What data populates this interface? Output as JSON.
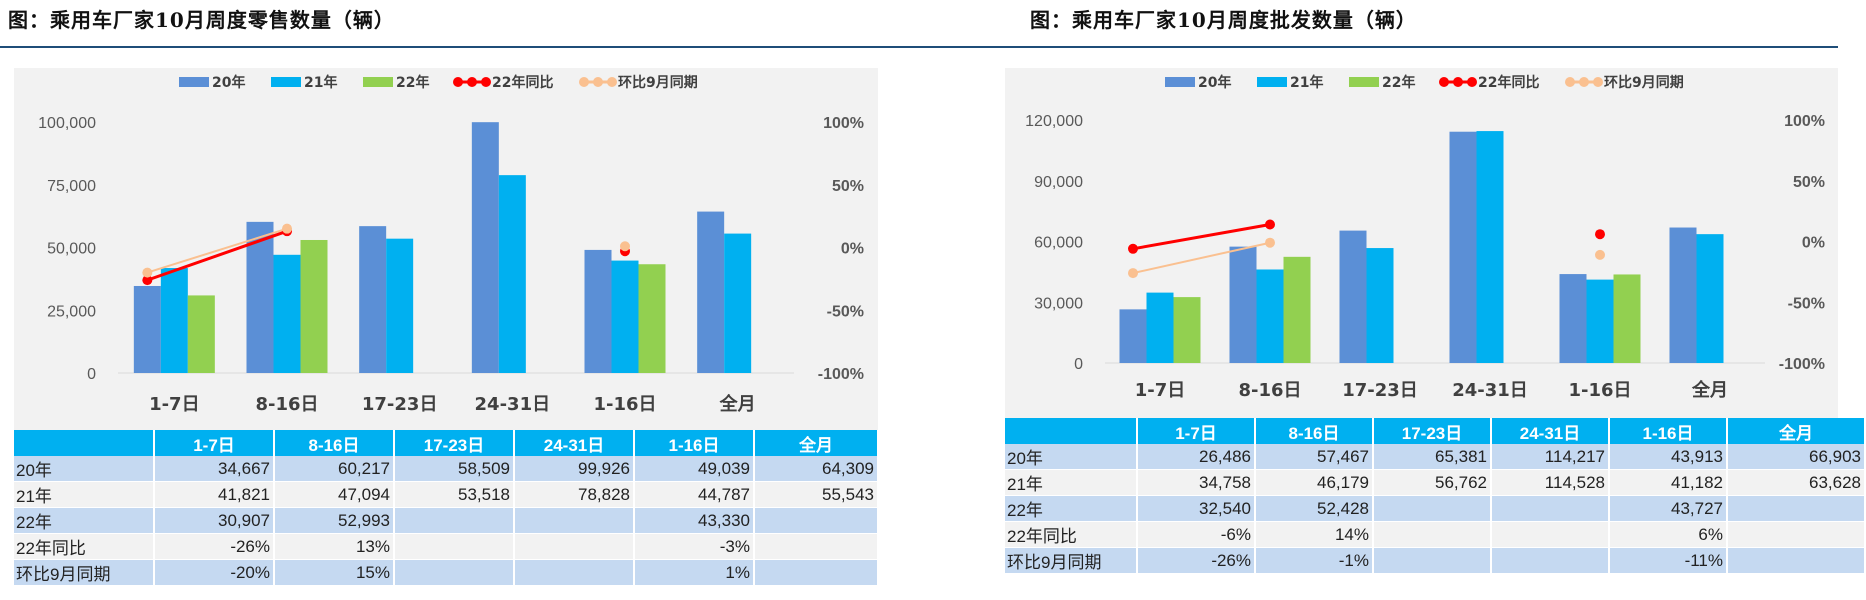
{
  "charts": [
    {
      "title": "图：乘用车厂家10月周度零售数量（辆）",
      "table_corner": "",
      "chart_data": {
        "type": "bar",
        "categories": [
          "1-7日",
          "8-16日",
          "17-23日",
          "24-31日",
          "1-16日",
          "全月"
        ],
        "series": [
          {
            "name": "20年",
            "kind": "bar",
            "color": "#5b8fd6",
            "values": [
              34667,
              60217,
              58509,
              99926,
              49039,
              64309
            ]
          },
          {
            "name": "21年",
            "kind": "bar",
            "color": "#00b0f0",
            "values": [
              41821,
              47094,
              53518,
              78828,
              44787,
              55543
            ]
          },
          {
            "name": "22年",
            "kind": "bar",
            "color": "#92d050",
            "values": [
              30907,
              52993,
              null,
              null,
              43330,
              null
            ]
          },
          {
            "name": "22年同比",
            "kind": "line",
            "axis": "right",
            "color": "#ff0000",
            "values": [
              -0.26,
              0.13,
              null,
              null,
              -0.03,
              null
            ]
          },
          {
            "name": "环比9月同期",
            "kind": "line",
            "axis": "right",
            "color": "#fac090",
            "values": [
              -0.2,
              0.15,
              null,
              null,
              0.01,
              null
            ]
          }
        ],
        "ylim": [
          0,
          100000
        ],
        "yticks": [
          "0",
          "25,000",
          "50,000",
          "75,000",
          "100,000"
        ],
        "y2lim": [
          -1,
          1
        ],
        "y2ticks": [
          "-100%",
          "-50%",
          "0%",
          "50%",
          "100%"
        ],
        "legend": "top",
        "grid": false
      },
      "table_rows": [
        {
          "label": "20年",
          "cells": [
            "34,667",
            "60,217",
            "58,509",
            "99,926",
            "49,039",
            "64,309"
          ]
        },
        {
          "label": "21年",
          "cells": [
            "41,821",
            "47,094",
            "53,518",
            "78,828",
            "44,787",
            "55,543"
          ]
        },
        {
          "label": "22年",
          "cells": [
            "30,907",
            "52,993",
            "",
            "",
            "43,330",
            ""
          ]
        },
        {
          "label": "22年同比",
          "cells": [
            "-26%",
            "13%",
            "",
            "",
            "-3%",
            ""
          ]
        },
        {
          "label": "环比9月同期",
          "cells": [
            "-20%",
            "15%",
            "",
            "",
            "1%",
            ""
          ]
        }
      ]
    },
    {
      "title": "图：乘用车厂家10月周度批发数量（辆）",
      "table_corner": "",
      "chart_data": {
        "type": "bar",
        "categories": [
          "1-7日",
          "8-16日",
          "17-23日",
          "24-31日",
          "1-16日",
          "全月"
        ],
        "series": [
          {
            "name": "20年",
            "kind": "bar",
            "color": "#5b8fd6",
            "values": [
              26486,
              57467,
              65381,
              114217,
              43913,
              66903
            ]
          },
          {
            "name": "21年",
            "kind": "bar",
            "color": "#00b0f0",
            "values": [
              34758,
              46179,
              56762,
              114528,
              41182,
              63628
            ]
          },
          {
            "name": "22年",
            "kind": "bar",
            "color": "#92d050",
            "values": [
              32540,
              52428,
              null,
              null,
              43727,
              null
            ]
          },
          {
            "name": "22年同比",
            "kind": "line",
            "axis": "right",
            "color": "#ff0000",
            "values": [
              -0.06,
              0.14,
              null,
              null,
              0.06,
              null
            ]
          },
          {
            "name": "环比9月同期",
            "kind": "line",
            "axis": "right",
            "color": "#fac090",
            "values": [
              -0.26,
              -0.01,
              null,
              null,
              -0.11,
              null
            ]
          }
        ],
        "ylim": [
          0,
          120000
        ],
        "yticks": [
          "0",
          "30,000",
          "60,000",
          "90,000",
          "120,000"
        ],
        "y2lim": [
          -1,
          1
        ],
        "y2ticks": [
          "-100%",
          "-50%",
          "0%",
          "50%",
          "100%"
        ],
        "legend": "top",
        "grid": false
      },
      "table_rows": [
        {
          "label": "20年",
          "cells": [
            "26,486",
            "57,467",
            "65,381",
            "114,217",
            "43,913",
            "66,903"
          ]
        },
        {
          "label": "21年",
          "cells": [
            "34,758",
            "46,179",
            "56,762",
            "114,528",
            "41,182",
            "63,628"
          ]
        },
        {
          "label": "22年",
          "cells": [
            "32,540",
            "52,428",
            "",
            "",
            "43,727",
            ""
          ]
        },
        {
          "label": "22年同比",
          "cells": [
            "-6%",
            "14%",
            "",
            "",
            "6%",
            ""
          ]
        },
        {
          "label": "环比9月同期",
          "cells": [
            "-26%",
            "-1%",
            "",
            "",
            "-11%",
            ""
          ]
        }
      ]
    }
  ]
}
